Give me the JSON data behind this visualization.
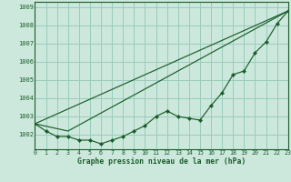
{
  "bg_color": "#cce8dc",
  "grid_color": "#99ccbb",
  "line_color": "#1a5c2a",
  "marker_color": "#1a5c2a",
  "xlabel": "Graphe pression niveau de la mer (hPa)",
  "xlabel_color": "#1a5c2a",
  "ylim": [
    1001.2,
    1009.3
  ],
  "xlim": [
    0,
    23
  ],
  "yticks": [
    1002,
    1003,
    1004,
    1005,
    1006,
    1007,
    1008,
    1009
  ],
  "xticks": [
    0,
    1,
    2,
    3,
    4,
    5,
    6,
    7,
    8,
    9,
    10,
    11,
    12,
    13,
    14,
    15,
    16,
    17,
    18,
    19,
    20,
    21,
    22,
    23
  ],
  "series1": [
    1002.6,
    1002.2,
    1001.9,
    1001.9,
    1001.7,
    1001.7,
    1001.5,
    1001.7,
    1001.9,
    1002.2,
    1002.5,
    1003.0,
    1003.3,
    1003.0,
    1002.9,
    1002.8,
    1003.6,
    1004.3,
    1005.3,
    1005.5,
    1006.5,
    1007.1,
    1008.1,
    1008.8
  ],
  "line2_x": [
    0,
    23
  ],
  "line2_y": [
    1002.6,
    1008.8
  ],
  "line3_x": [
    0,
    3,
    23
  ],
  "line3_y": [
    1002.6,
    1002.2,
    1008.8
  ]
}
